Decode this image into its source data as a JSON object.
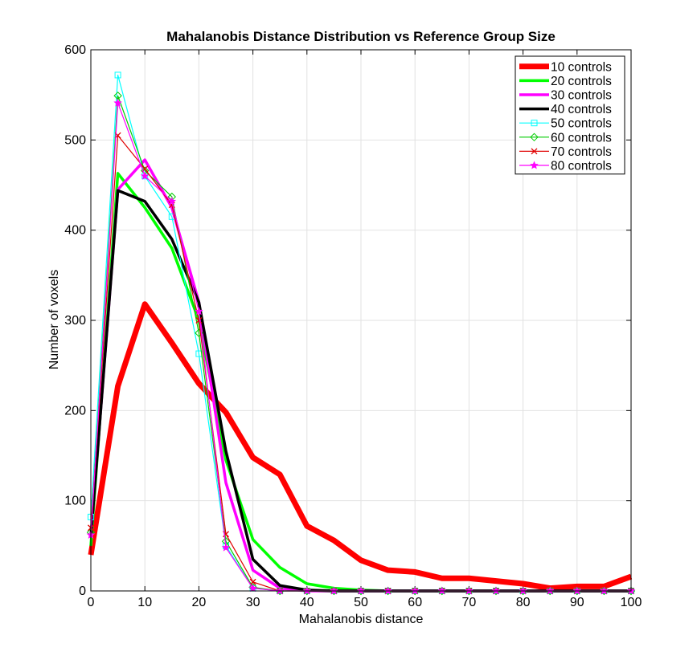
{
  "chart_data": {
    "type": "line",
    "title": "Mahalanobis Distance Distribution vs Reference Group Size",
    "xlabel": "Mahalanobis distance",
    "ylabel": "Number of voxels",
    "xlim": [
      0,
      100
    ],
    "ylim": [
      0,
      600
    ],
    "xticks": [
      0,
      10,
      20,
      30,
      40,
      50,
      60,
      70,
      80,
      90,
      100
    ],
    "yticks": [
      0,
      100,
      200,
      300,
      400,
      500,
      600
    ],
    "grid": true,
    "legend_position": "top-right",
    "x": [
      0,
      5,
      10,
      15,
      20,
      25,
      30,
      35,
      40,
      45,
      50,
      55,
      60,
      65,
      70,
      75,
      80,
      85,
      90,
      95,
      100
    ],
    "series": [
      {
        "name": "10 controls",
        "color": "#ff0000",
        "width": 7,
        "marker": "none",
        "values": [
          40,
          227,
          318,
          275,
          230,
          198,
          148,
          129,
          72,
          56,
          34,
          23,
          21,
          14,
          14,
          11,
          8,
          3,
          5,
          5,
          16
        ]
      },
      {
        "name": "20 controls",
        "color": "#00ff00",
        "width": 3.5,
        "marker": "none",
        "values": [
          50,
          463,
          425,
          380,
          300,
          145,
          57,
          26,
          8,
          3,
          1,
          0,
          0,
          0,
          0,
          0,
          0,
          0,
          0,
          0,
          0
        ]
      },
      {
        "name": "30 controls",
        "color": "#ff00ff",
        "width": 3.5,
        "marker": "none",
        "values": [
          60,
          445,
          478,
          425,
          320,
          120,
          23,
          3,
          0,
          0,
          0,
          0,
          0,
          0,
          0,
          0,
          0,
          0,
          0,
          0,
          0
        ]
      },
      {
        "name": "40 controls",
        "color": "#000000",
        "width": 3.5,
        "marker": "none",
        "values": [
          60,
          444,
          432,
          390,
          320,
          155,
          35,
          6,
          1,
          0,
          0,
          0,
          0,
          0,
          0,
          0,
          0,
          0,
          0,
          0,
          0
        ]
      },
      {
        "name": "50 controls",
        "color": "#00ffff",
        "width": 1.2,
        "marker": "square",
        "values": [
          82,
          572,
          460,
          415,
          263,
          50,
          3,
          0,
          0,
          0,
          0,
          0,
          0,
          0,
          0,
          0,
          0,
          0,
          0,
          0,
          0
        ]
      },
      {
        "name": "60 controls",
        "color": "#00cc00",
        "width": 1.2,
        "marker": "diamond",
        "values": [
          65,
          549,
          466,
          437,
          286,
          55,
          4,
          0,
          0,
          0,
          0,
          0,
          0,
          0,
          0,
          0,
          0,
          0,
          0,
          0,
          0
        ]
      },
      {
        "name": "70 controls",
        "color": "#e00000",
        "width": 1.2,
        "marker": "x",
        "values": [
          70,
          505,
          468,
          428,
          300,
          63,
          10,
          0,
          0,
          0,
          0,
          0,
          0,
          0,
          0,
          0,
          0,
          0,
          0,
          0,
          0
        ]
      },
      {
        "name": "80 controls",
        "color": "#ff00ff",
        "width": 1.2,
        "marker": "star",
        "values": [
          62,
          541,
          460,
          432,
          310,
          48,
          3,
          0,
          0,
          0,
          0,
          0,
          0,
          0,
          0,
          0,
          0,
          0,
          0,
          0,
          0
        ]
      }
    ]
  }
}
